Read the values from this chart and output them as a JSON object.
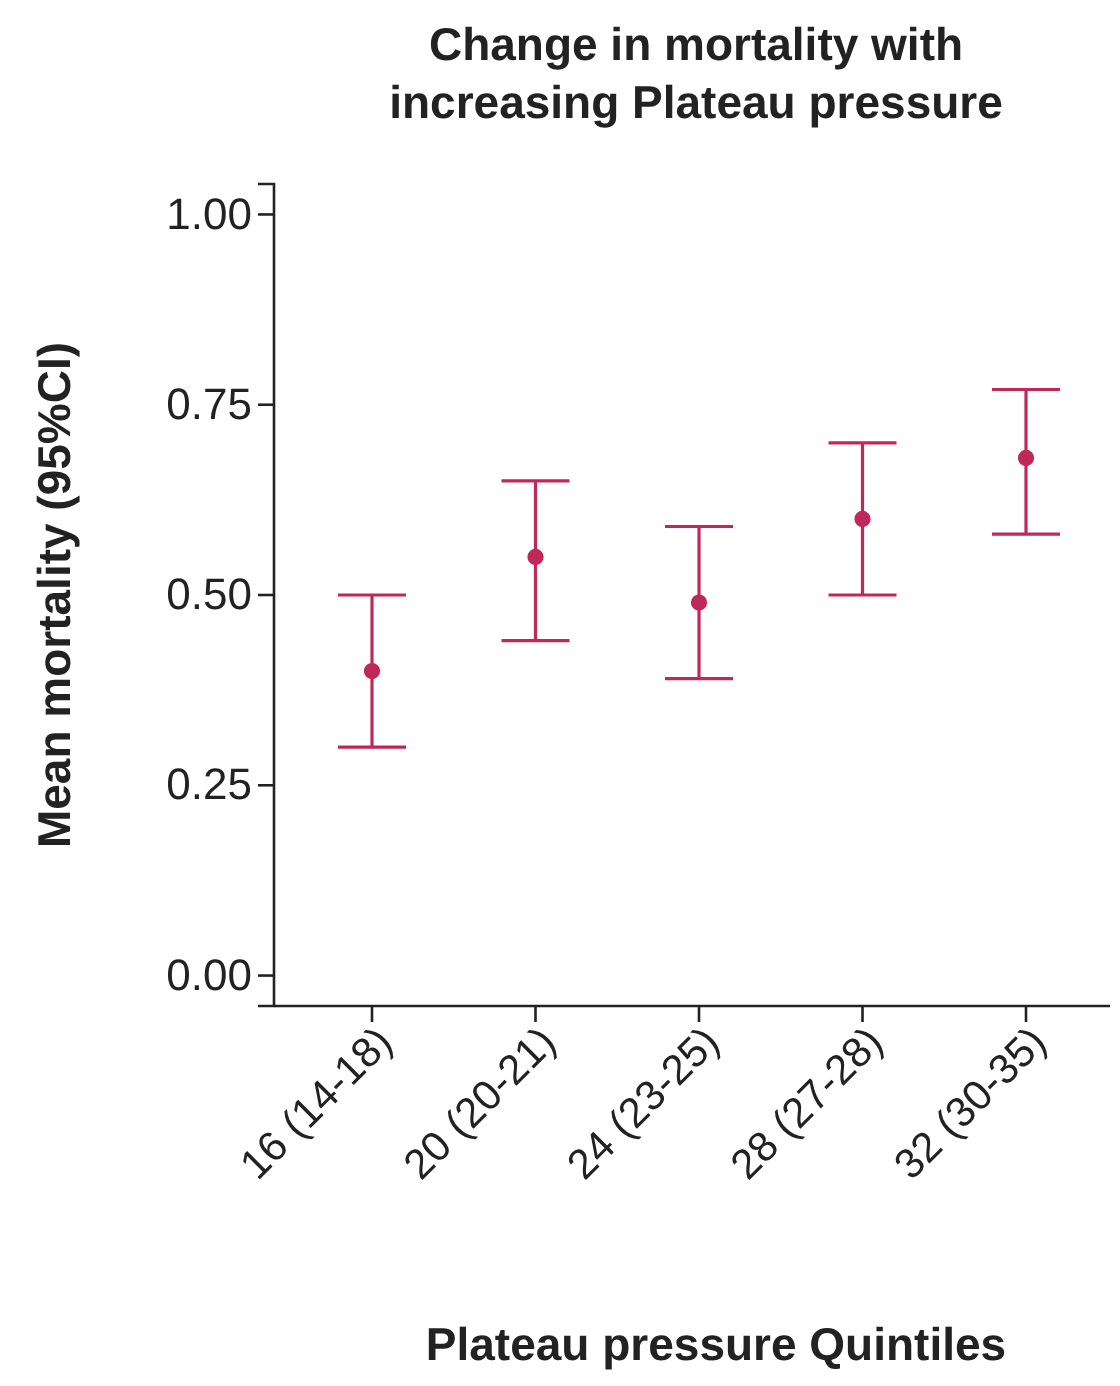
{
  "chart_data": {
    "type": "scatter",
    "title": "Change in mortality with increasing Plateau pressure",
    "xlabel": "Plateau pressure Quintiles",
    "ylabel": "Mean mortality (95%CI)",
    "categories": [
      "16 (14-18)",
      "20 (20-21)",
      "24 (23-25)",
      "28 (27-28)",
      "32 (30-35)"
    ],
    "series": [
      {
        "color": "#c0285a",
        "values": [
          0.4,
          0.55,
          0.49,
          0.6,
          0.68
        ],
        "errors": [
          [
            0.3,
            0.5
          ],
          [
            0.44,
            0.65
          ],
          [
            0.39,
            0.59
          ],
          [
            0.5,
            0.7
          ],
          [
            0.58,
            0.77
          ]
        ]
      }
    ],
    "ylim": [
      -0.04,
      1.04
    ],
    "yticks": [
      {
        "value": 0,
        "label": "0.00"
      },
      {
        "value": 0.25,
        "label": "0.25"
      },
      {
        "value": 0.5,
        "label": "0.50"
      },
      {
        "value": 0.75,
        "label": "0.75"
      },
      {
        "value": 1,
        "label": "1.00"
      }
    ],
    "grid": false,
    "marker": "circle"
  }
}
